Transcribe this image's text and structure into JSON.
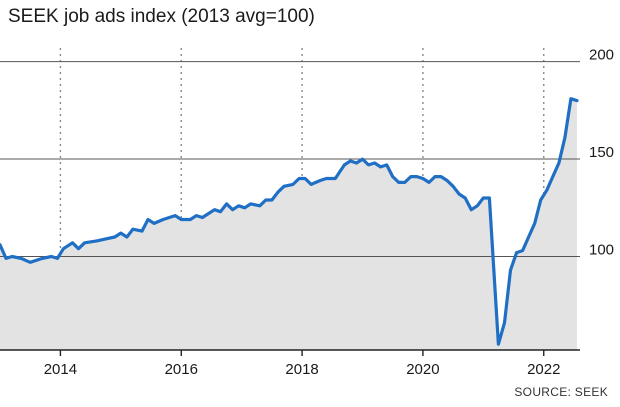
{
  "title": "SEEK job ads index (2013 avg=100)",
  "source": "SOURCE: SEEK",
  "colors": {
    "line": "#1f6fc5",
    "area": "#e3e3e3",
    "grid": "#555555",
    "vgrid": "#888888"
  },
  "chart_data": {
    "type": "area",
    "title": "SEEK job ads index (2013 avg=100)",
    "xlabel": "",
    "ylabel": "",
    "xlim": [
      2013.0,
      2022.6
    ],
    "ylim": [
      52,
      207
    ],
    "x_ticks": [
      2014,
      2016,
      2018,
      2020,
      2022
    ],
    "y_ticks": [
      100,
      150,
      200
    ],
    "grid": "horizontal solid at y ticks, vertical dotted at year ticks",
    "series": [
      {
        "values": [
          {
            "x": 2013.0,
            "y": 106
          },
          {
            "x": 2013.1,
            "y": 99
          },
          {
            "x": 2013.2,
            "y": 100
          },
          {
            "x": 2013.35,
            "y": 99
          },
          {
            "x": 2013.5,
            "y": 97
          },
          {
            "x": 2013.7,
            "y": 99
          },
          {
            "x": 2013.85,
            "y": 100
          },
          {
            "x": 2013.95,
            "y": 99
          },
          {
            "x": 2014.05,
            "y": 104
          },
          {
            "x": 2014.2,
            "y": 107
          },
          {
            "x": 2014.3,
            "y": 104
          },
          {
            "x": 2014.4,
            "y": 107
          },
          {
            "x": 2014.6,
            "y": 108
          },
          {
            "x": 2014.75,
            "y": 109
          },
          {
            "x": 2014.9,
            "y": 110
          },
          {
            "x": 2015.0,
            "y": 112
          },
          {
            "x": 2015.1,
            "y": 110
          },
          {
            "x": 2015.2,
            "y": 114
          },
          {
            "x": 2015.35,
            "y": 113
          },
          {
            "x": 2015.45,
            "y": 119
          },
          {
            "x": 2015.55,
            "y": 117
          },
          {
            "x": 2015.7,
            "y": 119
          },
          {
            "x": 2015.9,
            "y": 121
          },
          {
            "x": 2016.0,
            "y": 119
          },
          {
            "x": 2016.15,
            "y": 119
          },
          {
            "x": 2016.25,
            "y": 121
          },
          {
            "x": 2016.35,
            "y": 120
          },
          {
            "x": 2016.45,
            "y": 122
          },
          {
            "x": 2016.55,
            "y": 124
          },
          {
            "x": 2016.65,
            "y": 123
          },
          {
            "x": 2016.75,
            "y": 127
          },
          {
            "x": 2016.85,
            "y": 124
          },
          {
            "x": 2016.95,
            "y": 126
          },
          {
            "x": 2017.05,
            "y": 125
          },
          {
            "x": 2017.15,
            "y": 127
          },
          {
            "x": 2017.3,
            "y": 126
          },
          {
            "x": 2017.4,
            "y": 129
          },
          {
            "x": 2017.5,
            "y": 129
          },
          {
            "x": 2017.6,
            "y": 133
          },
          {
            "x": 2017.7,
            "y": 136
          },
          {
            "x": 2017.85,
            "y": 137
          },
          {
            "x": 2017.95,
            "y": 140
          },
          {
            "x": 2018.05,
            "y": 140
          },
          {
            "x": 2018.15,
            "y": 137
          },
          {
            "x": 2018.3,
            "y": 139
          },
          {
            "x": 2018.4,
            "y": 140
          },
          {
            "x": 2018.55,
            "y": 140
          },
          {
            "x": 2018.7,
            "y": 147
          },
          {
            "x": 2018.8,
            "y": 149
          },
          {
            "x": 2018.9,
            "y": 148
          },
          {
            "x": 2019.0,
            "y": 150
          },
          {
            "x": 2019.1,
            "y": 147
          },
          {
            "x": 2019.2,
            "y": 148
          },
          {
            "x": 2019.3,
            "y": 146
          },
          {
            "x": 2019.4,
            "y": 147
          },
          {
            "x": 2019.5,
            "y": 141
          },
          {
            "x": 2019.6,
            "y": 138
          },
          {
            "x": 2019.7,
            "y": 138
          },
          {
            "x": 2019.8,
            "y": 141
          },
          {
            "x": 2019.9,
            "y": 141
          },
          {
            "x": 2020.0,
            "y": 140
          },
          {
            "x": 2020.1,
            "y": 138
          },
          {
            "x": 2020.2,
            "y": 141
          },
          {
            "x": 2020.3,
            "y": 141
          },
          {
            "x": 2020.4,
            "y": 139
          },
          {
            "x": 2020.5,
            "y": 136
          },
          {
            "x": 2020.6,
            "y": 132
          },
          {
            "x": 2020.7,
            "y": 130
          },
          {
            "x": 2020.8,
            "y": 124
          },
          {
            "x": 2020.9,
            "y": 126
          },
          {
            "x": 2021.0,
            "y": 130
          },
          {
            "x": 2021.1,
            "y": 130
          },
          {
            "x": 2021.25,
            "y": 55
          },
          {
            "x": 2021.35,
            "y": 66
          },
          {
            "x": 2021.45,
            "y": 93
          },
          {
            "x": 2021.55,
            "y": 102
          },
          {
            "x": 2021.65,
            "y": 103
          },
          {
            "x": 2021.75,
            "y": 110
          },
          {
            "x": 2021.85,
            "y": 117
          },
          {
            "x": 2021.95,
            "y": 129
          },
          {
            "x": 2022.05,
            "y": 134
          },
          {
            "x": 2022.15,
            "y": 141
          },
          {
            "x": 2022.25,
            "y": 148
          },
          {
            "x": 2022.35,
            "y": 161
          },
          {
            "x": 2022.45,
            "y": 181
          },
          {
            "x": 2022.55,
            "y": 180
          }
        ]
      }
    ]
  }
}
